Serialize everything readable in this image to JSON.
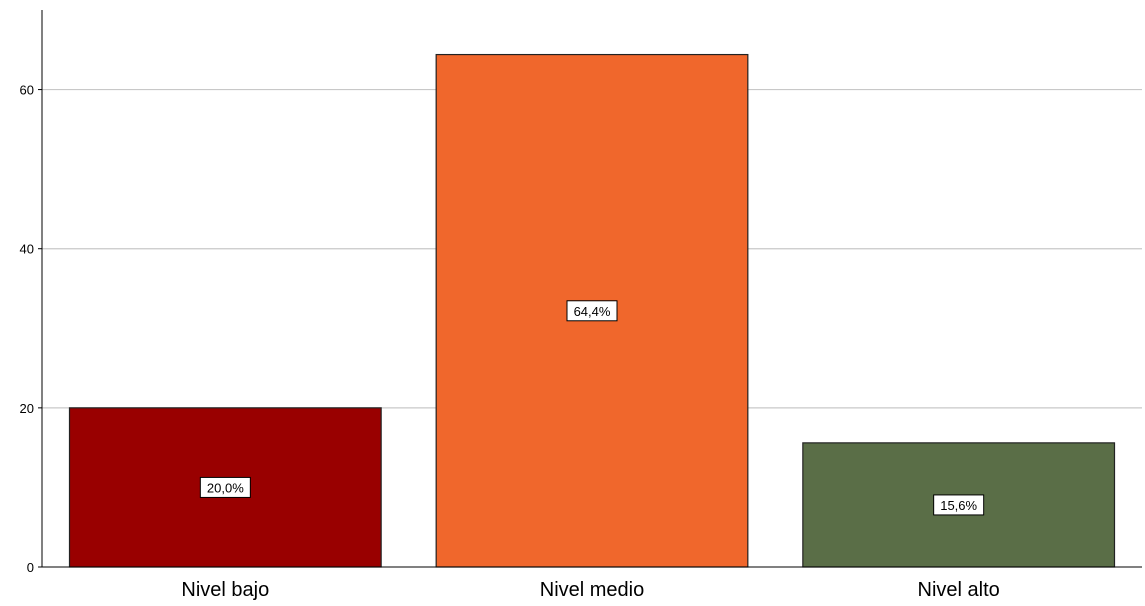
{
  "chart_data": {
    "type": "bar",
    "categories": [
      "Nivel bajo",
      "Nivel medio",
      "Nivel alto"
    ],
    "values": [
      20.0,
      64.4,
      15.6
    ],
    "data_labels": [
      "20,0%",
      "64,4%",
      "15,6%"
    ],
    "title": "",
    "xlabel": "",
    "ylabel": "",
    "ylim": [
      0,
      70
    ],
    "yticks": [
      0,
      20,
      40,
      60
    ],
    "ytick_labels": [
      "0",
      "20",
      "40",
      "60"
    ],
    "grid": true,
    "colors": [
      "#990000",
      "#F0672C",
      "#5A6E47"
    ]
  }
}
